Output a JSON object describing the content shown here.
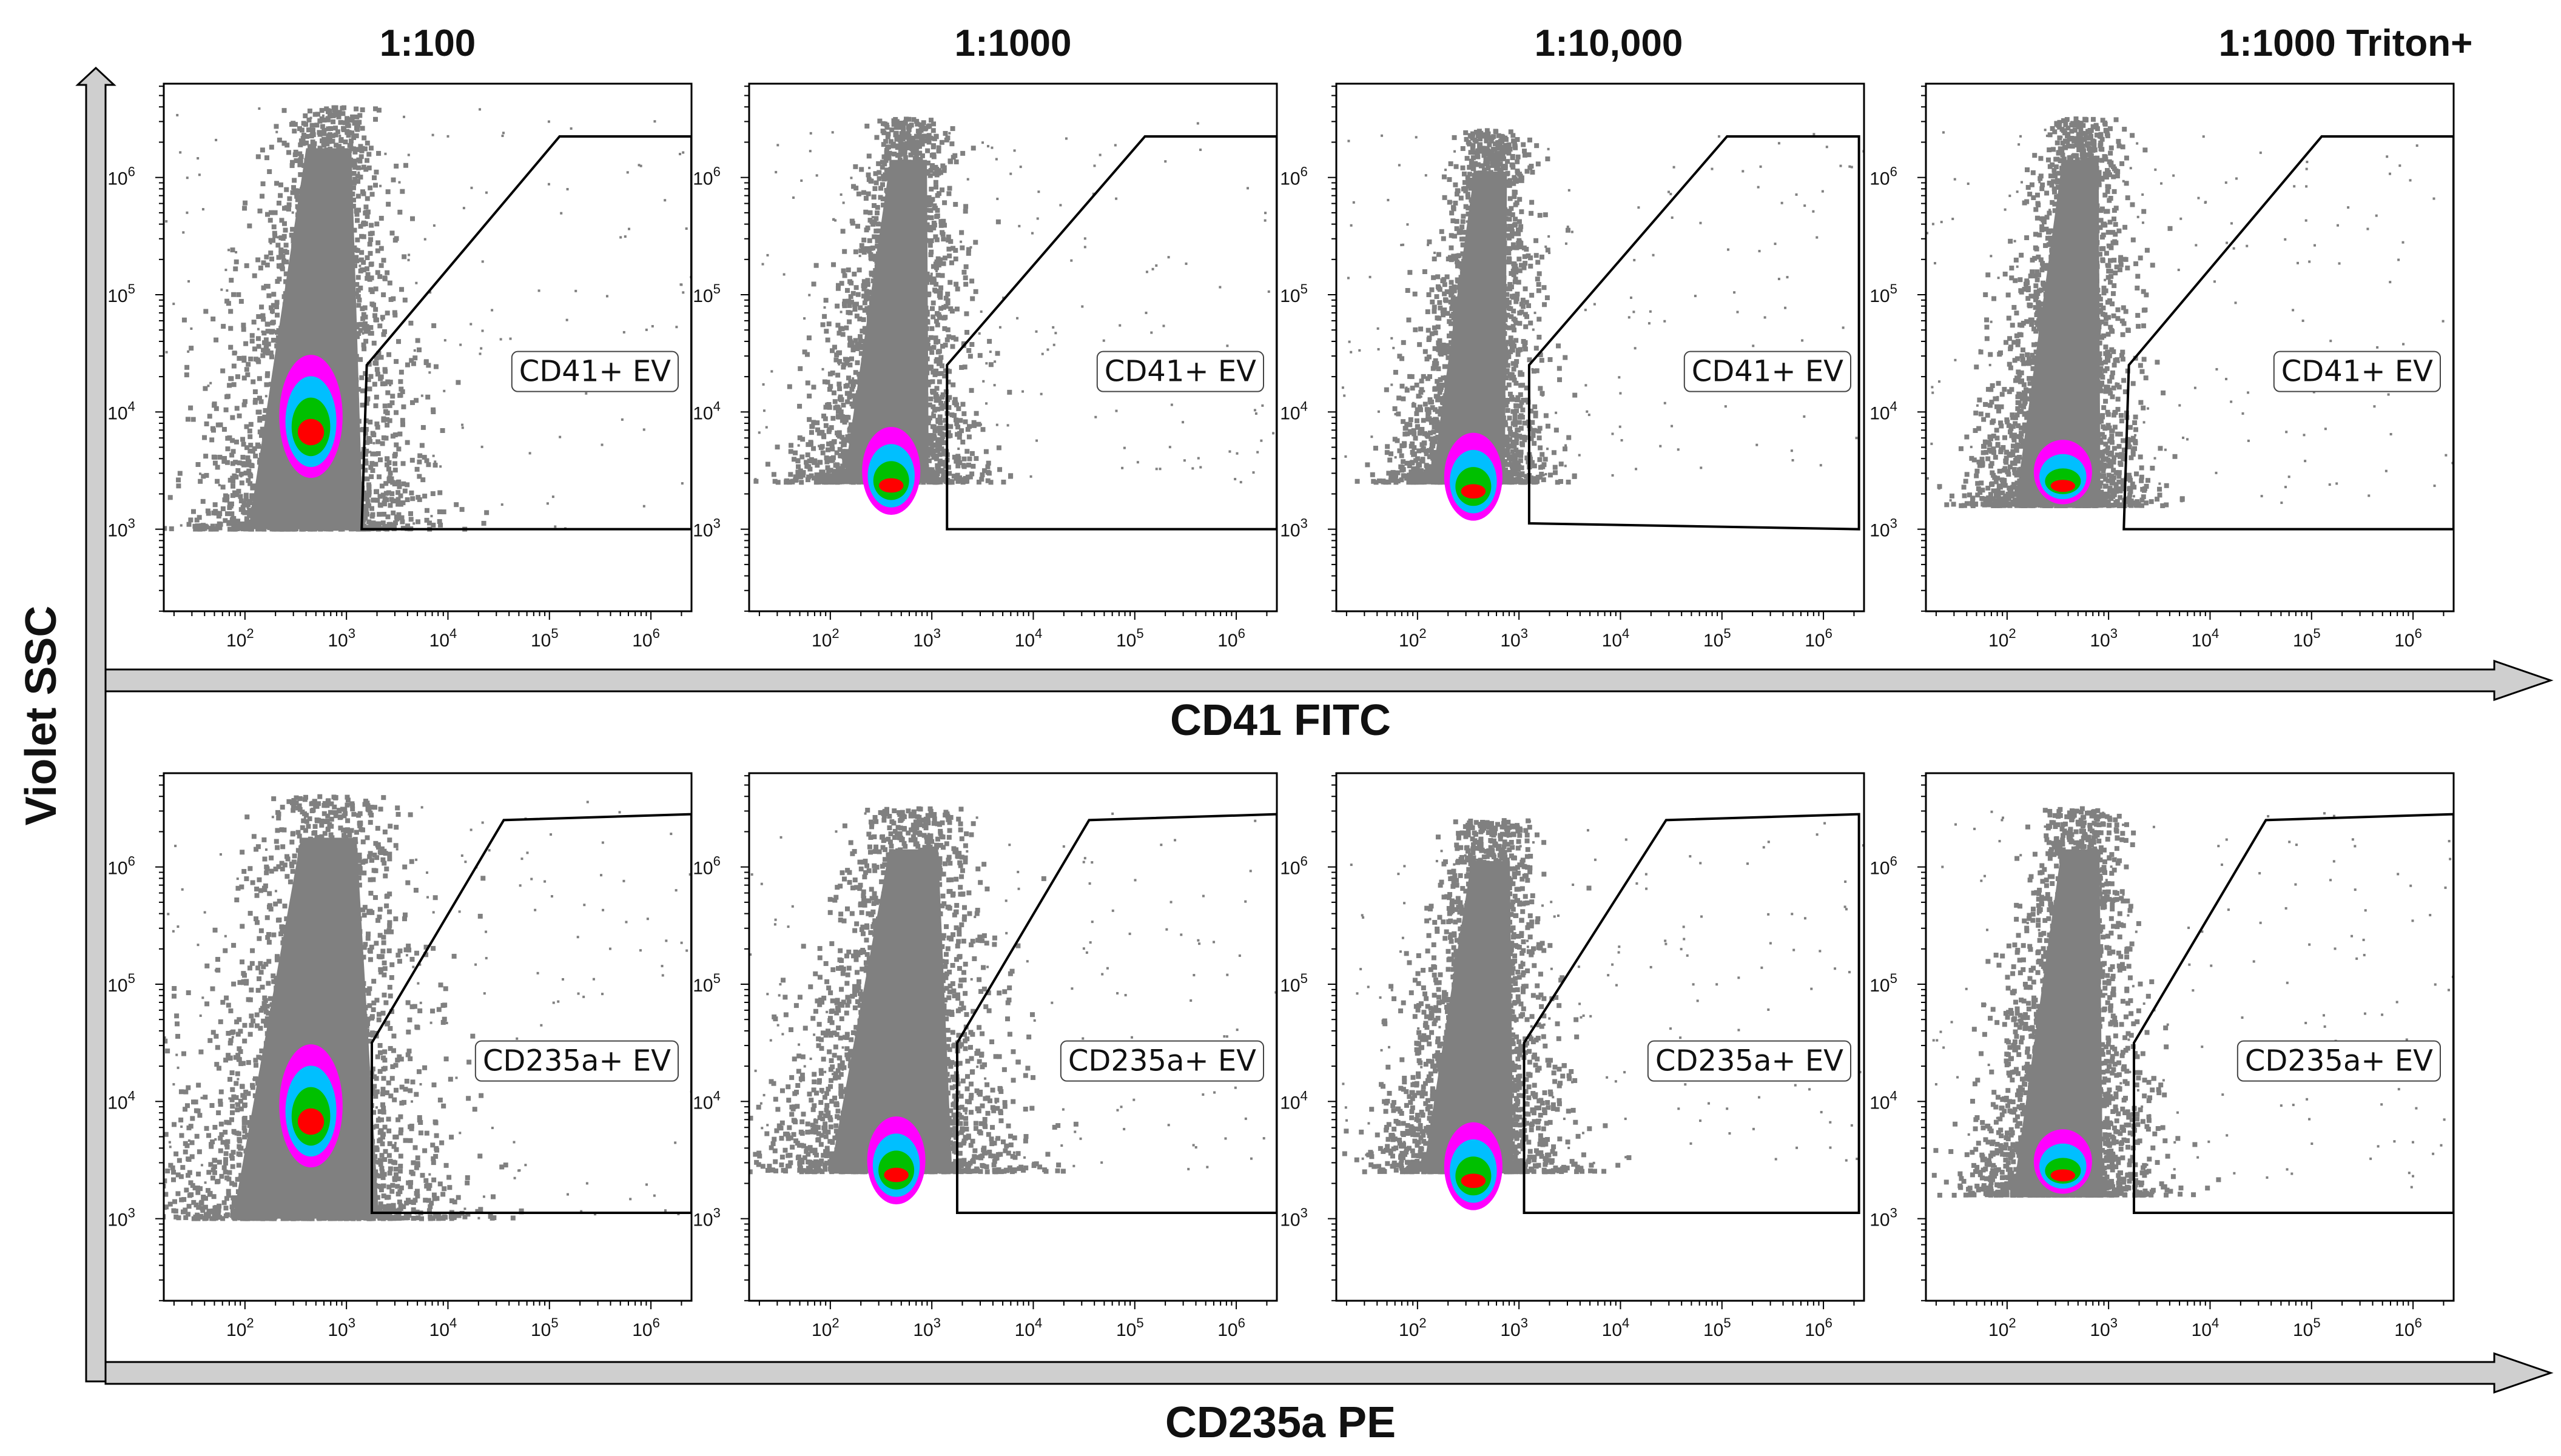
{
  "chart_data": {
    "type": "scatter",
    "subtype": "flow-cytometry-density-dot-plot-grid",
    "y_axis_title": "Violet SSC",
    "row_axis_titles": [
      "CD41 FITC",
      "CD235a PE"
    ],
    "column_titles": [
      "1:100",
      "1:1000",
      "1:10,000",
      "1:1000 Triton+"
    ],
    "x_ticks": [
      {
        "value": 2,
        "base": "10",
        "exp": "2"
      },
      {
        "value": 3,
        "base": "10",
        "exp": "3"
      },
      {
        "value": 4,
        "base": "10",
        "exp": "4"
      },
      {
        "value": 5,
        "base": "10",
        "exp": "5"
      },
      {
        "value": 6,
        "base": "10",
        "exp": "6"
      }
    ],
    "y_ticks": [
      {
        "value": 3,
        "base": "10",
        "exp": "3"
      },
      {
        "value": 4,
        "base": "10",
        "exp": "4"
      },
      {
        "value": 5,
        "base": "10",
        "exp": "5"
      },
      {
        "value": 6,
        "base": "10",
        "exp": "6"
      }
    ],
    "xlim_log10": [
      1.2,
      6.4
    ],
    "ylim_log10": [
      2.3,
      6.8
    ],
    "density_colors": [
      "#808080",
      "#ff00ff",
      "#00bfff",
      "#00c000",
      "#ff0000"
    ],
    "rows": [
      {
        "marker": "CD41 FITC",
        "panels": [
          {
            "dilution": "1:100",
            "gate_label": "CD41+ EV",
            "population": {
              "x_center": 2.6,
              "x_spread": 0.42,
              "y_min": 3.0,
              "y_center": 3.9,
              "y_max": 6.6,
              "hot_y": 4.2,
              "hot_height": 1.25
            },
            "gate_vertices": [
              [
                3.15,
                3.0
              ],
              [
                3.2,
                4.4
              ],
              [
                5.1,
                6.35
              ],
              [
                6.4,
                6.35
              ],
              [
                6.4,
                3.0
              ]
            ]
          },
          {
            "dilution": "1:1000",
            "gate_label": "CD41+ EV",
            "population": {
              "x_center": 2.55,
              "x_spread": 0.3,
              "y_min": 3.4,
              "y_center": 3.7,
              "y_max": 6.5,
              "hot_y": 3.75,
              "hot_height": 0.95
            },
            "gate_vertices": [
              [
                3.15,
                3.0
              ],
              [
                3.15,
                4.4
              ],
              [
                5.1,
                6.35
              ],
              [
                6.4,
                6.35
              ],
              [
                6.4,
                3.0
              ]
            ]
          },
          {
            "dilution": "1:10,000",
            "gate_label": "CD41+ EV",
            "population": {
              "x_center": 2.5,
              "x_spread": 0.25,
              "y_min": 3.4,
              "y_center": 3.6,
              "y_max": 6.4,
              "hot_y": 3.7,
              "hot_height": 0.95
            },
            "gate_vertices": [
              [
                3.1,
                3.05
              ],
              [
                3.1,
                4.4
              ],
              [
                5.05,
                6.35
              ],
              [
                6.35,
                6.35
              ],
              [
                6.35,
                3.0
              ]
            ]
          },
          {
            "dilution": "1:1000 Triton+",
            "gate_label": "CD41+ EV",
            "population": {
              "x_center": 2.5,
              "x_spread": 0.3,
              "y_min": 3.2,
              "y_center": 3.6,
              "y_max": 6.5,
              "hot_y": 3.75,
              "hot_height": 0.75
            },
            "gate_vertices": [
              [
                3.15,
                3.0
              ],
              [
                3.2,
                4.4
              ],
              [
                5.1,
                6.35
              ],
              [
                6.4,
                6.35
              ],
              [
                6.4,
                3.0
              ]
            ]
          }
        ]
      },
      {
        "marker": "CD235a PE",
        "panels": [
          {
            "dilution": "1:100",
            "gate_label": "CD235a+ EV",
            "population": {
              "x_center": 2.6,
              "x_spread": 0.55,
              "y_min": 3.0,
              "y_center": 3.9,
              "y_max": 6.6,
              "hot_y": 4.2,
              "hot_height": 1.25
            },
            "gate_vertices": [
              [
                3.25,
                3.05
              ],
              [
                3.25,
                4.5
              ],
              [
                4.55,
                6.4
              ],
              [
                6.4,
                6.45
              ],
              [
                6.4,
                3.05
              ]
            ]
          },
          {
            "dilution": "1:1000",
            "gate_label": "CD235a+ EV",
            "population": {
              "x_center": 2.6,
              "x_spread": 0.45,
              "y_min": 3.4,
              "y_center": 3.7,
              "y_max": 6.5,
              "hot_y": 3.75,
              "hot_height": 0.95
            },
            "gate_vertices": [
              [
                3.25,
                3.05
              ],
              [
                3.25,
                4.5
              ],
              [
                4.55,
                6.4
              ],
              [
                6.4,
                6.45
              ],
              [
                6.4,
                3.05
              ]
            ]
          },
          {
            "dilution": "1:10,000",
            "gate_label": "CD235a+ EV",
            "population": {
              "x_center": 2.5,
              "x_spread": 0.32,
              "y_min": 3.4,
              "y_center": 3.6,
              "y_max": 6.4,
              "hot_y": 3.7,
              "hot_height": 0.95
            },
            "gate_vertices": [
              [
                3.05,
                3.05
              ],
              [
                3.05,
                4.5
              ],
              [
                4.45,
                6.4
              ],
              [
                6.35,
                6.45
              ],
              [
                6.35,
                3.05
              ]
            ]
          },
          {
            "dilution": "1:1000 Triton+",
            "gate_label": "CD235a+ EV",
            "population": {
              "x_center": 2.5,
              "x_spread": 0.32,
              "y_min": 3.2,
              "y_center": 3.6,
              "y_max": 6.5,
              "hot_y": 3.75,
              "hot_height": 0.75
            },
            "gate_vertices": [
              [
                3.25,
                3.05
              ],
              [
                3.25,
                4.5
              ],
              [
                4.55,
                6.4
              ],
              [
                6.4,
                6.45
              ],
              [
                6.4,
                3.05
              ]
            ]
          }
        ]
      }
    ]
  }
}
